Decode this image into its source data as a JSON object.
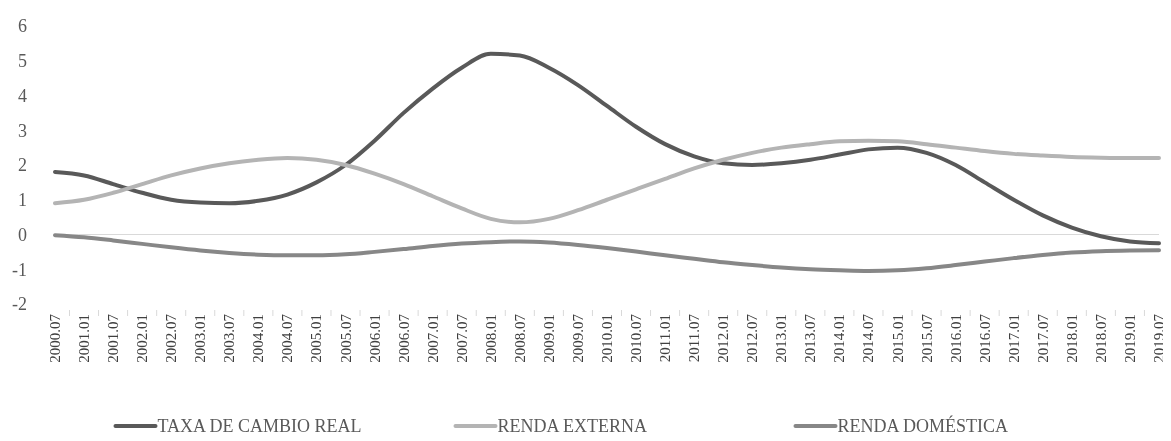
{
  "chart_data": {
    "type": "line",
    "categories": [
      "2000.07",
      "2001.01",
      "2001.07",
      "2002.01",
      "2002.07",
      "2003.01",
      "2003.07",
      "2004.01",
      "2004.07",
      "2005.01",
      "2005.07",
      "2006.01",
      "2006.07",
      "2007.01",
      "2007.07",
      "2008.01",
      "2008.07",
      "2009.01",
      "2009.07",
      "2010.01",
      "2010.07",
      "2011.01",
      "2011.07",
      "2012.01",
      "2012.07",
      "2013.01",
      "2013.07",
      "2014.01",
      "2014.07",
      "2015.01",
      "2015.07",
      "2016.01",
      "2016.07",
      "2017.01",
      "2017.07",
      "2018.01",
      "2018.07",
      "2019.01",
      "2019.07"
    ],
    "series": [
      {
        "name": "TAXA DE CAMBIO REAL",
        "color": "#595959",
        "values": [
          1.8,
          1.7,
          1.45,
          1.2,
          1.0,
          0.92,
          0.9,
          0.97,
          1.15,
          1.5,
          2.0,
          2.7,
          3.5,
          4.2,
          4.8,
          5.2,
          5.15,
          4.8,
          4.3,
          3.7,
          3.1,
          2.6,
          2.25,
          2.05,
          2.0,
          2.05,
          2.15,
          2.3,
          2.45,
          2.5,
          2.35,
          2.0,
          1.5,
          1.0,
          0.55,
          0.2,
          -0.05,
          -0.2,
          -0.25
        ]
      },
      {
        "name": "RENDA EXTERNA",
        "color": "#b4b4b4",
        "values": [
          0.9,
          1.0,
          1.2,
          1.45,
          1.7,
          1.9,
          2.05,
          2.15,
          2.2,
          2.15,
          2.0,
          1.75,
          1.45,
          1.1,
          0.75,
          0.45,
          0.35,
          0.45,
          0.7,
          1.0,
          1.3,
          1.6,
          1.9,
          2.15,
          2.35,
          2.5,
          2.6,
          2.68,
          2.7,
          2.68,
          2.6,
          2.5,
          2.4,
          2.32,
          2.27,
          2.23,
          2.21,
          2.2,
          2.2
        ]
      },
      {
        "name": "RENDA DOMÉSTICA",
        "color": "#878787",
        "values": [
          -0.02,
          -0.08,
          -0.17,
          -0.27,
          -0.37,
          -0.46,
          -0.53,
          -0.58,
          -0.6,
          -0.6,
          -0.57,
          -0.5,
          -0.42,
          -0.33,
          -0.26,
          -0.22,
          -0.2,
          -0.23,
          -0.3,
          -0.39,
          -0.49,
          -0.6,
          -0.7,
          -0.8,
          -0.88,
          -0.95,
          -1.0,
          -1.03,
          -1.05,
          -1.03,
          -0.97,
          -0.88,
          -0.78,
          -0.68,
          -0.59,
          -0.52,
          -0.48,
          -0.46,
          -0.45
        ]
      }
    ],
    "ylim": [
      -2,
      6
    ],
    "yticks": [
      -2,
      -1,
      0,
      1,
      2,
      3,
      4,
      5,
      6
    ],
    "legend": "bottom",
    "line_style": "solid",
    "marker": "none"
  }
}
